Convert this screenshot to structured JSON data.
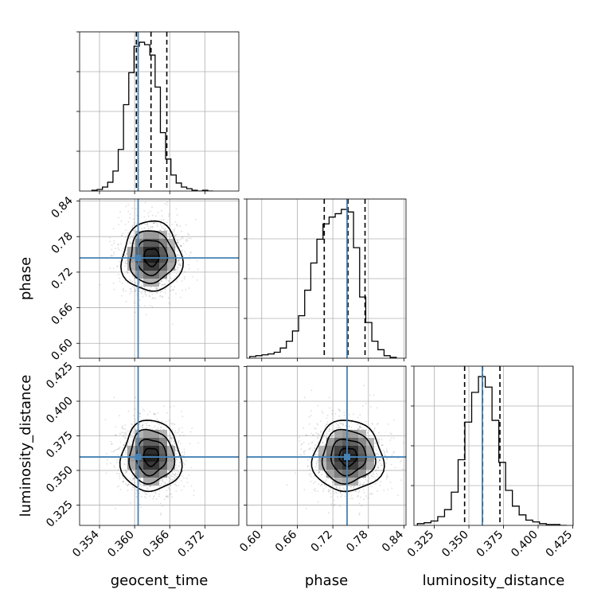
{
  "chart_data": {
    "type": "corner",
    "parameters": [
      "geocent_time",
      "phase",
      "luminosity_distance"
    ],
    "axis_labels": {
      "geocent_time": "geocent_time",
      "phase": "phase",
      "luminosity_distance": "luminosity_distance"
    },
    "ranges": {
      "geocent_time": [
        0.3506,
        0.3778
      ],
      "phase": [
        0.5748,
        0.8434
      ],
      "luminosity_distance": [
        0.3103,
        0.4253
      ]
    },
    "ticks": {
      "geocent_time": [
        0.354,
        0.36,
        0.366,
        0.372
      ],
      "phase": [
        0.6,
        0.66,
        0.72,
        0.78,
        0.84
      ],
      "luminosity_distance": [
        0.325,
        0.35,
        0.375,
        0.4,
        0.425
      ]
    },
    "tick_labels": {
      "geocent_time": [
        "0.354",
        "0.360",
        "0.366",
        "0.372"
      ],
      "phase": [
        "0.60",
        "0.66",
        "0.72",
        "0.78",
        "0.84"
      ],
      "luminosity_distance": [
        "0.325",
        "0.350",
        "0.375",
        "0.400",
        "0.425"
      ]
    },
    "truths": {
      "geocent_time": 0.3606,
      "phase": 0.744,
      "luminosity_distance": 0.3597
    },
    "quantiles": {
      "geocent_time": [
        0.3603,
        0.3628,
        0.3655
      ],
      "phase": [
        0.7055,
        0.7455,
        0.7743
      ],
      "luminosity_distance": [
        0.3469,
        0.3599,
        0.3724
      ]
    },
    "histograms": {
      "geocent_time": {
        "bin_edges": [
          0.3527,
          0.3536,
          0.3545,
          0.3554,
          0.3563,
          0.3572,
          0.3581,
          0.359,
          0.3599,
          0.3608,
          0.3617,
          0.3626,
          0.3635,
          0.3644,
          0.3653,
          0.3662,
          0.3671,
          0.368,
          0.3689,
          0.3698,
          0.3707,
          0.3716,
          0.3725,
          0.3734
        ],
        "counts": [
          1,
          2,
          5,
          11,
          25,
          52,
          108,
          148,
          181,
          186,
          183,
          170,
          130,
          73,
          40,
          20,
          10,
          5,
          3,
          1,
          0,
          1,
          0
        ]
      },
      "phase": {
        "bin_edges": [
          0.5798,
          0.5901,
          0.6004,
          0.6107,
          0.621,
          0.6313,
          0.6416,
          0.6519,
          0.6622,
          0.6725,
          0.6828,
          0.6931,
          0.7034,
          0.7137,
          0.724,
          0.7343,
          0.7446,
          0.7549,
          0.7652,
          0.7755,
          0.7858,
          0.7961,
          0.8064,
          0.8167,
          0.827
        ],
        "counts": [
          2,
          3,
          4,
          5,
          7,
          12,
          20,
          32,
          50,
          80,
          112,
          140,
          158,
          166,
          170,
          175,
          172,
          130,
          72,
          42,
          20,
          10,
          3,
          1
        ]
      },
      "luminosity_distance": {
        "bin_edges": [
          0.3128,
          0.3177,
          0.3226,
          0.3275,
          0.3324,
          0.3373,
          0.3422,
          0.3471,
          0.352,
          0.3569,
          0.3618,
          0.3667,
          0.3716,
          0.3765,
          0.3814,
          0.3863,
          0.3912,
          0.3961,
          0.401,
          0.4059,
          0.4108,
          0.4157,
          0.4206
        ],
        "counts": [
          2,
          3,
          5,
          10,
          18,
          38,
          75,
          118,
          152,
          170,
          158,
          120,
          72,
          40,
          22,
          12,
          6,
          4,
          2,
          1,
          1,
          0
        ]
      }
    },
    "density_2d": [
      {
        "x_param": "geocent_time",
        "y_param": "phase",
        "center": [
          0.3629,
          0.7455
        ],
        "sigma": [
          0.00255,
          0.0295
        ],
        "correlation": -0.05,
        "contour_levels_sigma": [
          0.5,
          1.0,
          1.5,
          2.0
        ]
      },
      {
        "x_param": "geocent_time",
        "y_param": "luminosity_distance",
        "center": [
          0.3628,
          0.3599
        ],
        "sigma": [
          0.00255,
          0.0128
        ],
        "correlation": 0.0,
        "contour_levels_sigma": [
          0.5,
          1.0,
          1.5,
          2.0
        ]
      },
      {
        "x_param": "phase",
        "y_param": "luminosity_distance",
        "center": [
          0.7455,
          0.3599
        ],
        "sigma": [
          0.0295,
          0.0128
        ],
        "correlation": 0.02,
        "contour_levels_sigma": [
          0.5,
          1.0,
          1.5,
          2.0
        ]
      }
    ],
    "truth_color": "#4682b4",
    "grid": true
  }
}
